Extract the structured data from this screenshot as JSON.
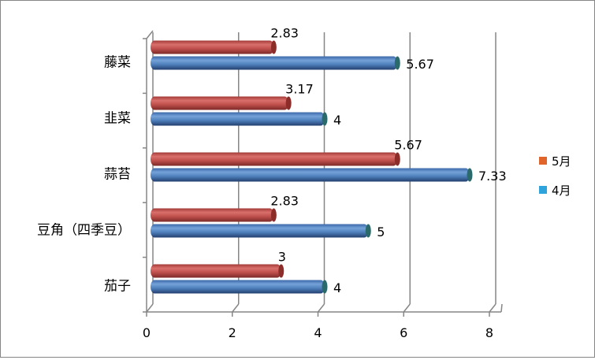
{
  "chart_data": {
    "type": "bar",
    "orientation": "horizontal",
    "style": "3d-cylinder",
    "categories": [
      "藤菜",
      "韭菜",
      "蒜苔",
      "豆角（四季豆）",
      "茄子"
    ],
    "series": [
      {
        "name": "5月",
        "color": "#C0504D",
        "values": [
          2.83,
          3.17,
          5.67,
          2.83,
          3
        ]
      },
      {
        "name": "4月",
        "color": "#4F81BD",
        "values": [
          5.67,
          4,
          7.33,
          5,
          4
        ]
      }
    ],
    "data_labels": {
      "5月": [
        "2.83",
        "3.17",
        "5.67",
        "2.83",
        "3"
      ],
      "4月": [
        "5.67",
        "4",
        "7.33",
        "5",
        "4"
      ]
    },
    "xlim": [
      0,
      8
    ],
    "xticks": [
      "0",
      "2",
      "4",
      "6",
      "8"
    ],
    "grid": true,
    "legend": "right",
    "legend_colors": {
      "5月": "#E0652A",
      "4月": "#2FA3DB"
    }
  }
}
